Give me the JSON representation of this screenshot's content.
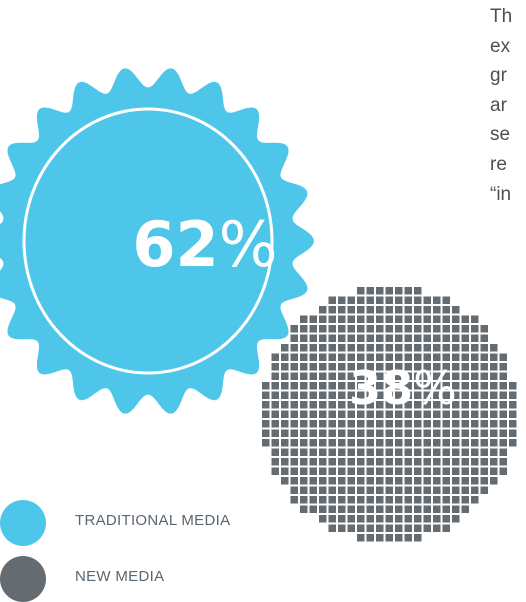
{
  "side_text": [
    "Th",
    "ex",
    "gr",
    "ar",
    "se",
    "re",
    "“in"
  ],
  "chart_data": {
    "type": "pie",
    "title": "",
    "slices": [
      {
        "name": "TRADITIONAL MEDIA",
        "value": 62,
        "label_number": "62",
        "label_unit": "%",
        "color": "#4ec6ea"
      },
      {
        "name": "NEW MEDIA",
        "value": 38,
        "label_number": "38",
        "label_unit": "%",
        "color": "#646b71"
      }
    ],
    "legend": {
      "placement": "bottom-left",
      "items": [
        {
          "label": "TRADITIONAL MEDIA",
          "color": "#4ec6ea"
        },
        {
          "label": "NEW MEDIA",
          "color": "#646b71"
        }
      ]
    },
    "overlap_color": "#236f8a"
  }
}
